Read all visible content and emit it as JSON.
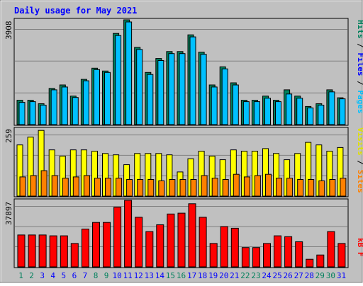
{
  "chart_data": [
    {
      "type": "bar",
      "panel": "hits-files-pages",
      "title": "Daily usage for May 2021",
      "categories": [
        "1",
        "2",
        "3",
        "4",
        "5",
        "6",
        "7",
        "8",
        "9",
        "10",
        "11",
        "12",
        "13",
        "14",
        "15",
        "16",
        "17",
        "18",
        "19",
        "20",
        "21",
        "22",
        "23",
        "24",
        "25",
        "26",
        "27",
        "28",
        "29",
        "30",
        "31"
      ],
      "weekend_days": [
        "1",
        "2",
        "8",
        "9",
        "15",
        "16",
        "22",
        "23",
        "29",
        "30"
      ],
      "ymax": 3908,
      "ymax_label": "3908",
      "legend": [
        "Hits",
        "Files",
        "Pages"
      ],
      "series": [
        {
          "name": "Hits",
          "color": "#00805c",
          "values": [
            908,
            908,
            778,
            1350,
            1480,
            1064,
            1687,
            2104,
            2000,
            3401,
            3908,
            2882,
            1947,
            2467,
            2726,
            2726,
            3348,
            2700,
            1480,
            2156,
            1557,
            908,
            908,
            1064,
            908,
            1297,
            1064,
            675,
            778,
            1297,
            1000
          ]
        },
        {
          "name": "Files",
          "color": "#00c0ff",
          "values": [
            830,
            856,
            726,
            1297,
            1401,
            1012,
            1635,
            2052,
            1947,
            3323,
            3830,
            2804,
            1869,
            2389,
            2649,
            2649,
            3271,
            2622,
            1401,
            2078,
            1479,
            856,
            856,
            986,
            856,
            1142,
            986,
            623,
            726,
            1219,
            960
          ]
        },
        {
          "name": "Pages",
          "color": "#0000ff",
          "values": [
            0,
            0,
            0,
            0,
            0,
            0,
            0,
            0,
            0,
            0,
            0,
            0,
            0,
            0,
            0,
            0,
            0,
            0,
            0,
            0,
            0,
            0,
            0,
            0,
            0,
            0,
            0,
            0,
            0,
            0,
            0
          ]
        }
      ]
    },
    {
      "type": "bar",
      "panel": "visits-sites",
      "ymax": 259,
      "ymax_label": "259",
      "legend": [
        "Visits",
        "Sites"
      ],
      "series": [
        {
          "name": "Visits",
          "color": "#ffff00",
          "values": [
            197,
            227,
            253,
            178,
            154,
            178,
            178,
            173,
            164,
            159,
            121,
            164,
            164,
            164,
            159,
            93,
            144,
            173,
            154,
            140,
            178,
            173,
            173,
            183,
            164,
            140,
            164,
            207,
            197,
            173,
            187
          ]
        },
        {
          "name": "Sites",
          "color": "#ff8000",
          "values": [
            74,
            79,
            98,
            79,
            69,
            74,
            79,
            69,
            69,
            69,
            64,
            64,
            64,
            59,
            64,
            64,
            64,
            79,
            69,
            64,
            84,
            74,
            79,
            84,
            69,
            69,
            64,
            64,
            59,
            64,
            69
          ]
        }
      ]
    },
    {
      "type": "bar",
      "panel": "kbytes",
      "ymax": 37897,
      "ymax_label": "37897",
      "legend": [
        "KBytes"
      ],
      "legend_text": "kB F",
      "series": [
        {
          "name": "KBytes",
          "color": "#ff0000",
          "values": [
            18168,
            18168,
            18168,
            17689,
            17689,
            13346,
            21522,
            25327,
            25327,
            33997,
            37897,
            28266,
            20106,
            23989,
            30111,
            30594,
            35949,
            28266,
            13346,
            22967,
            22001,
            10998,
            10998,
            13346,
            17689,
            17208,
            14316,
            4343,
            6790,
            20106,
            13346
          ]
        }
      ]
    }
  ],
  "colors": {
    "background": "#c0c0c0",
    "plot_background": "#c0c0c0",
    "title": "#0000ff",
    "weekday_label": "#0000ff",
    "weekend_label": "#00805c"
  }
}
